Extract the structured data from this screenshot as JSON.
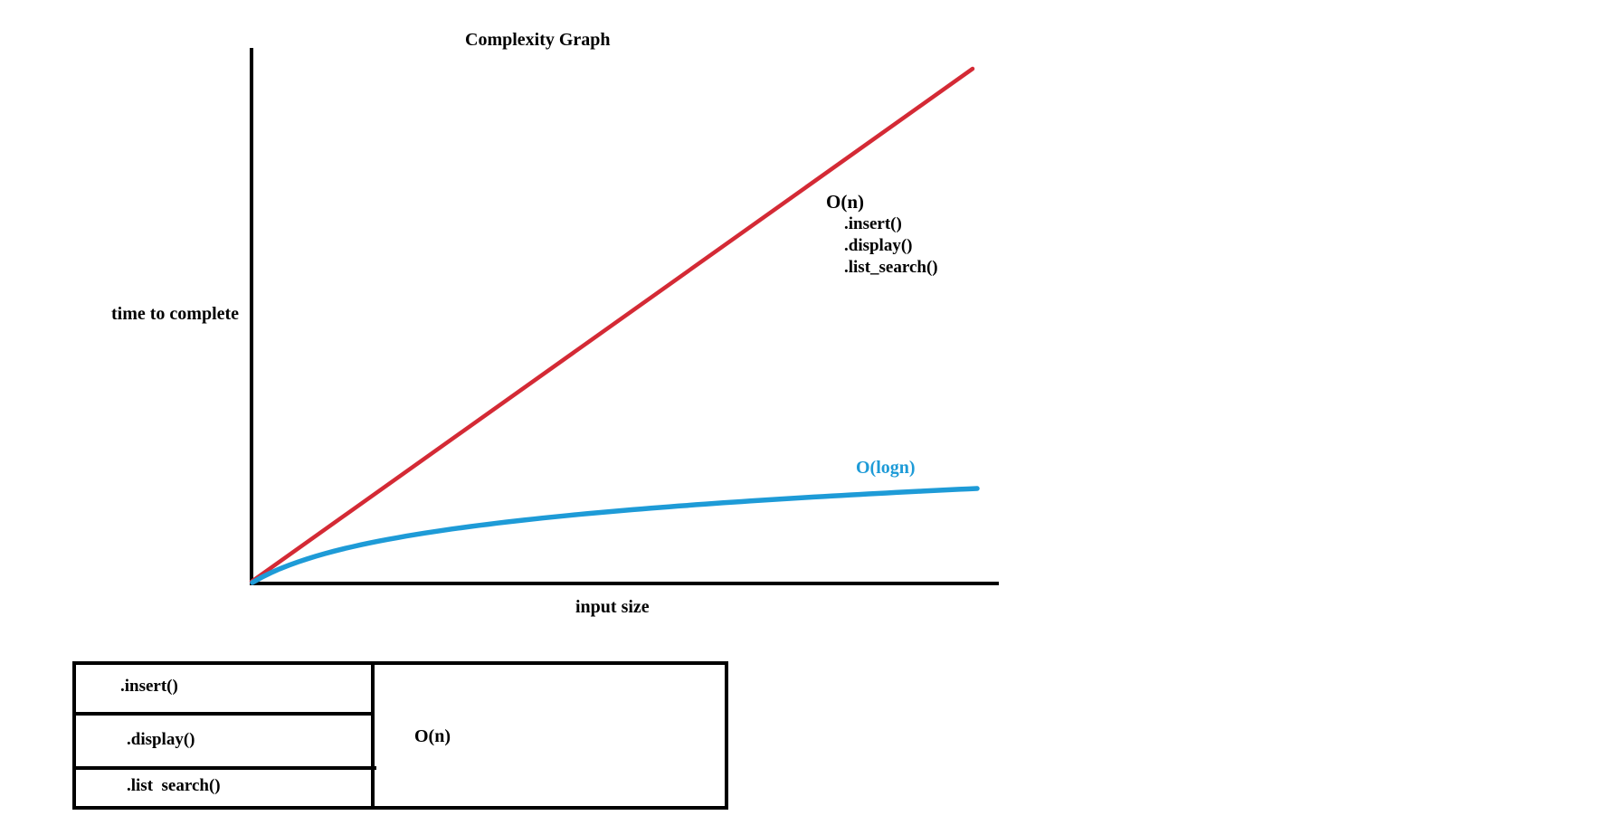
{
  "graph": {
    "title": "Complexity Graph",
    "y_axis_label": "time to complete",
    "x_axis_label": "input size",
    "curves": {
      "linear": {
        "label": "O(n)",
        "color": "#d42a35",
        "methods": [
          ".insert()",
          ".display()",
          ".list_search()"
        ]
      },
      "logarithmic": {
        "label": "O(logn)",
        "color": "#1e9bd7"
      }
    },
    "axis_color": "#000000"
  },
  "table": {
    "rows": [
      ".insert()",
      ".display()",
      ".list  search()"
    ],
    "complexity": "O(n)"
  }
}
